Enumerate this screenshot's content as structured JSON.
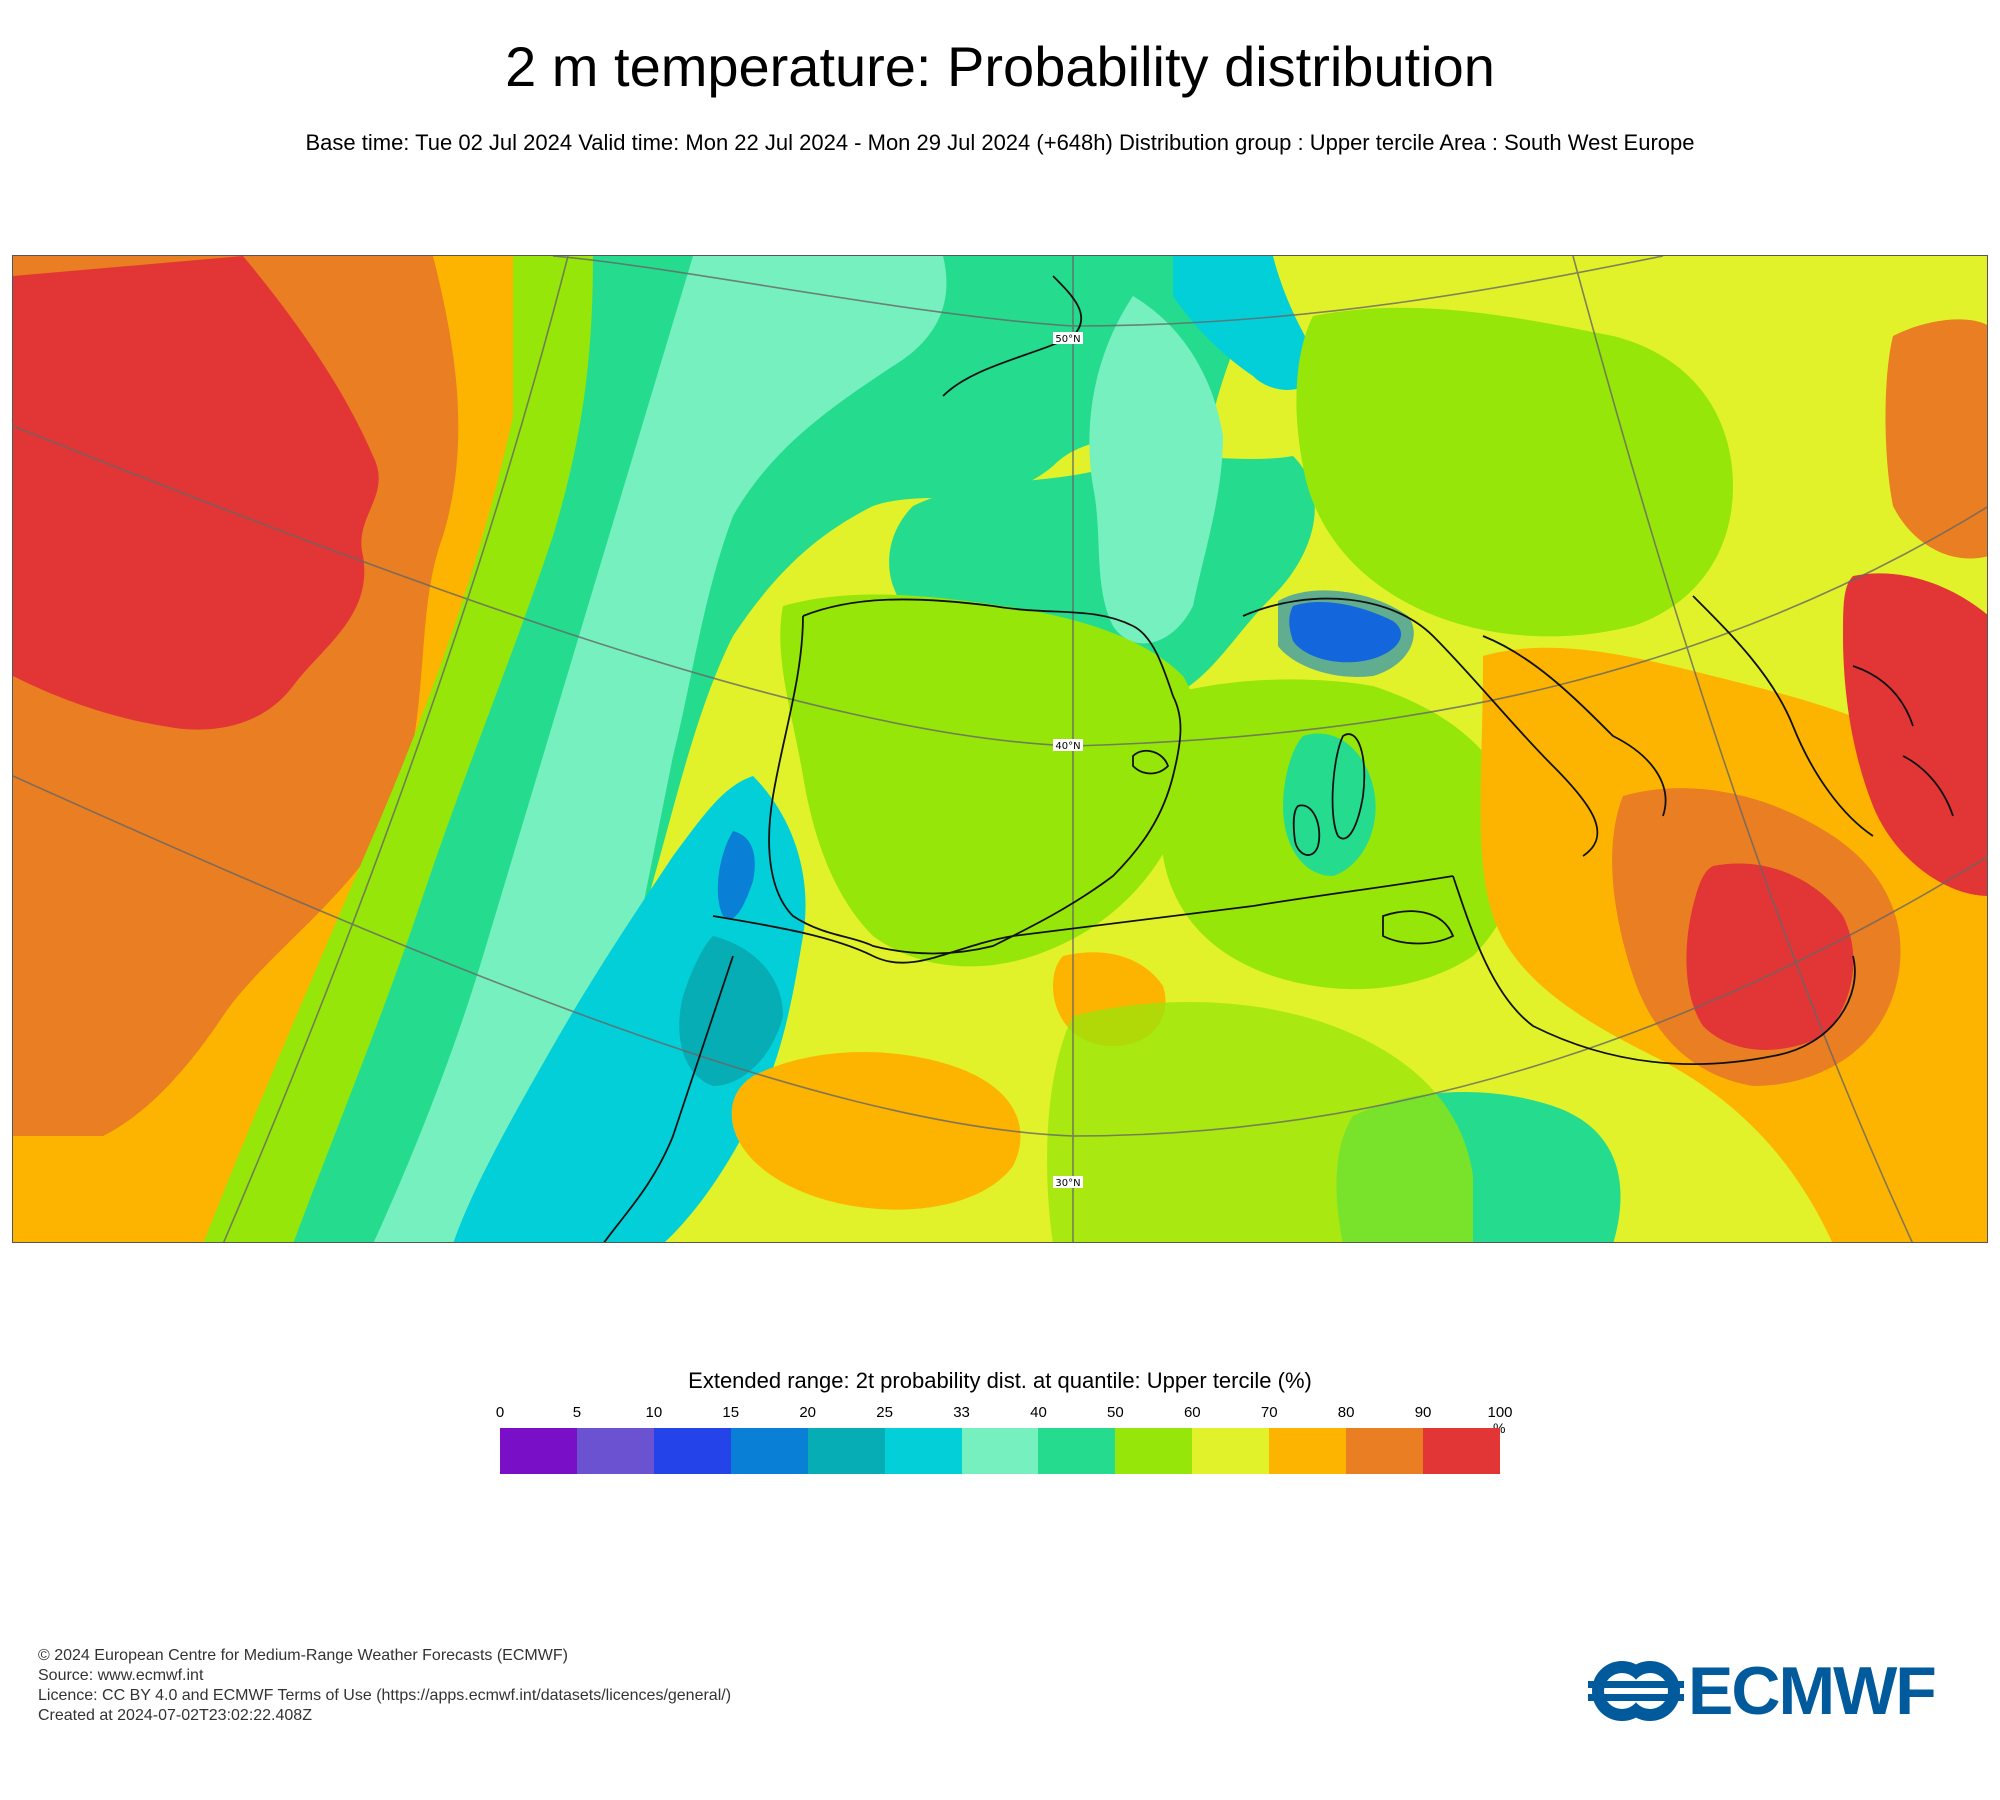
{
  "title": "2 m temperature: Probability distribution",
  "subtitle": "Base time: Tue 02 Jul 2024 Valid time: Mon 22 Jul 2024 - Mon 29 Jul 2024 (+648h) Distribution group : Upper tercile Area : South West Europe",
  "map": {
    "lat_labels": [
      "50°N",
      "40°N",
      "30°N"
    ]
  },
  "legend": {
    "title": "Extended range: 2t probability dist. at quantile: Upper tercile (%)",
    "ticks": [
      "0",
      "5",
      "10",
      "15",
      "20",
      "25",
      "33",
      "40",
      "50",
      "60",
      "70",
      "80",
      "90",
      "100"
    ],
    "unit": "%",
    "colors": [
      "#7a0fc8",
      "#6a52d0",
      "#2443e8",
      "#0a7fd6",
      "#07adb4",
      "#02cfd8",
      "#76f0bf",
      "#25dc8e",
      "#96e60a",
      "#e1f22a",
      "#fdb400",
      "#e97e22",
      "#e23636"
    ]
  },
  "credits": {
    "line1": "© 2024 European Centre for Medium-Range Weather Forecasts (ECMWF)",
    "line2": "Source: www.ecmwf.int",
    "line3": "Licence: CC BY 4.0 and ECMWF Terms of Use (https://apps.ecmwf.int/datasets/licences/general/)",
    "line4": "Created at 2024-07-02T23:02:22.408Z"
  },
  "logo": {
    "text": "ECMWF",
    "color": "#005a9c"
  }
}
